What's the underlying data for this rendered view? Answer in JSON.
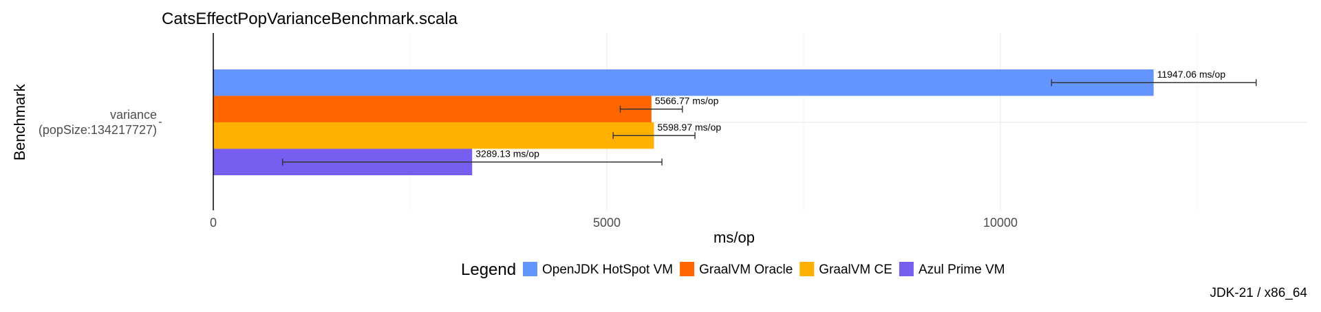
{
  "chart_data": {
    "type": "bar",
    "orientation": "horizontal",
    "title": "CatsEffectPopVarianceBenchmark.scala",
    "xlabel": "ms/op",
    "ylabel": "Benchmark",
    "caption": "JDK-21 / x86_64",
    "xlim": [
      0,
      13900
    ],
    "x_ticks": [
      0,
      5000,
      10000
    ],
    "grid": true,
    "categories": [
      "variance\n(popSize:134217727)"
    ],
    "series": [
      {
        "name": "OpenJDK HotSpot VM",
        "color": "#6495ff",
        "values": [
          11947.06
        ],
        "error": [
          [
            10650,
            13250
          ]
        ],
        "label": "11947.06 ms/op"
      },
      {
        "name": "GraalVM Oracle",
        "color": "#ff6600",
        "values": [
          5566.77
        ],
        "error": [
          [
            5170,
            5960
          ]
        ],
        "label": "5566.77 ms/op"
      },
      {
        "name": "GraalVM CE",
        "color": "#ffb000",
        "values": [
          5598.97
        ],
        "error": [
          [
            5080,
            6120
          ]
        ],
        "label": "5598.97 ms/op"
      },
      {
        "name": "Azul Prime VM",
        "color": "#785ef0",
        "values": [
          3289.13
        ],
        "error": [
          [
            880,
            5700
          ]
        ],
        "label": "3289.13 ms/op"
      }
    ],
    "legend": {
      "title": "Legend",
      "position": "bottom"
    }
  }
}
